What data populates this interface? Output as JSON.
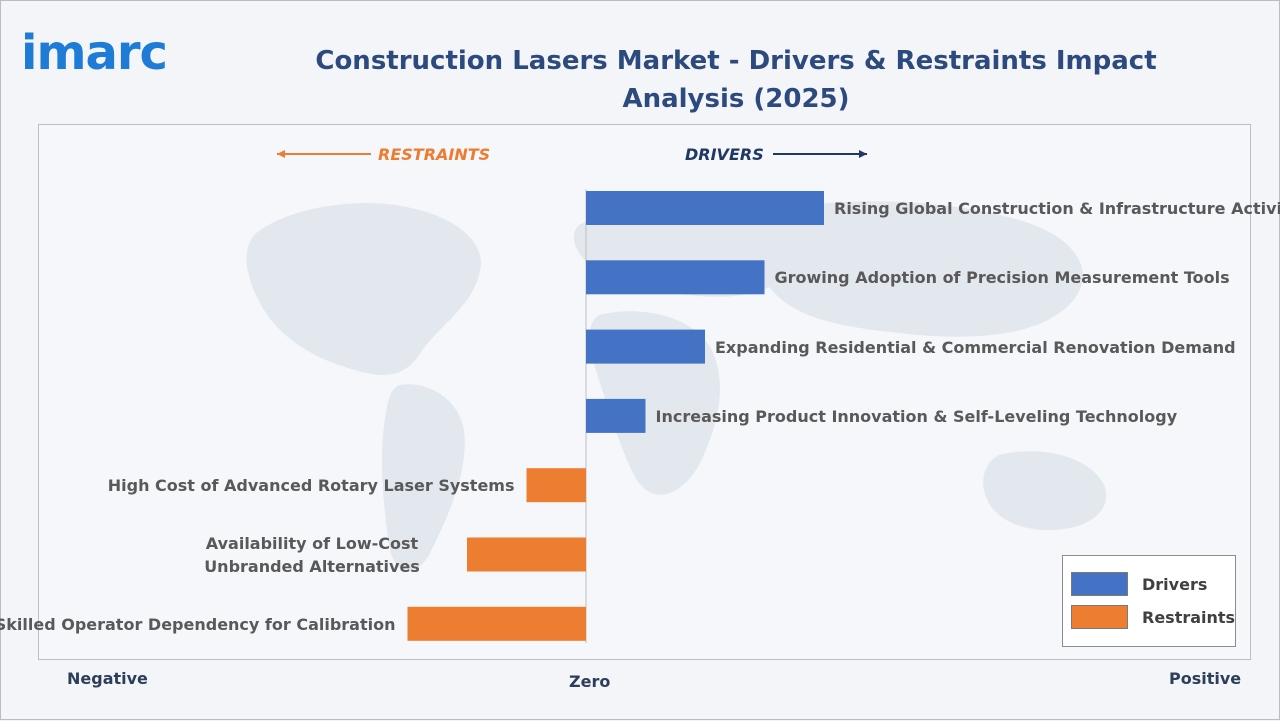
{
  "brand": {
    "logo_text": "imarc"
  },
  "header": {
    "title": "Construction Lasers Market - Drivers & Restraints Impact Analysis (2025)"
  },
  "direction": {
    "restraints": "RESTRAINTS",
    "drivers": "DRIVERS"
  },
  "axis": {
    "negative": "Negative",
    "zero": "Zero",
    "positive": "Positive"
  },
  "legend": [
    {
      "label": "Drivers",
      "color": "#4472c4"
    },
    {
      "label": "Restraints",
      "color": "#ed7d31"
    }
  ],
  "colors": {
    "driver": "#4472c4",
    "restraint": "#ed7d31",
    "title": "#2c4a7e",
    "logo": "#1e7bd6"
  },
  "chart_data": {
    "type": "bar",
    "orientation": "horizontal",
    "title": "Construction Lasers Market - Drivers & Restraints Impact Analysis (2025)",
    "categories": [
      "Rising Global Construction & Infrastructure Activity",
      "Growing Adoption of Precision Measurement Tools",
      "Expanding Residential & Commercial Renovation Demand",
      "Increasing Product Innovation & Self-Leveling Technology",
      "High Cost of Advanced Rotary Laser Systems",
      "Availability of Low-Cost Unbranded Alternatives",
      "Skilled Operator Dependency for Calibration"
    ],
    "series": [
      {
        "name": "Drivers",
        "values": [
          4,
          3,
          2,
          1,
          null,
          null,
          null
        ]
      },
      {
        "name": "Restraints",
        "values": [
          null,
          null,
          null,
          null,
          -1,
          -2,
          -3
        ]
      }
    ],
    "xlim": [
      -4,
      4
    ],
    "xlabel": "",
    "ylabel": "",
    "grid": false,
    "legend_position": "bottom-right"
  }
}
